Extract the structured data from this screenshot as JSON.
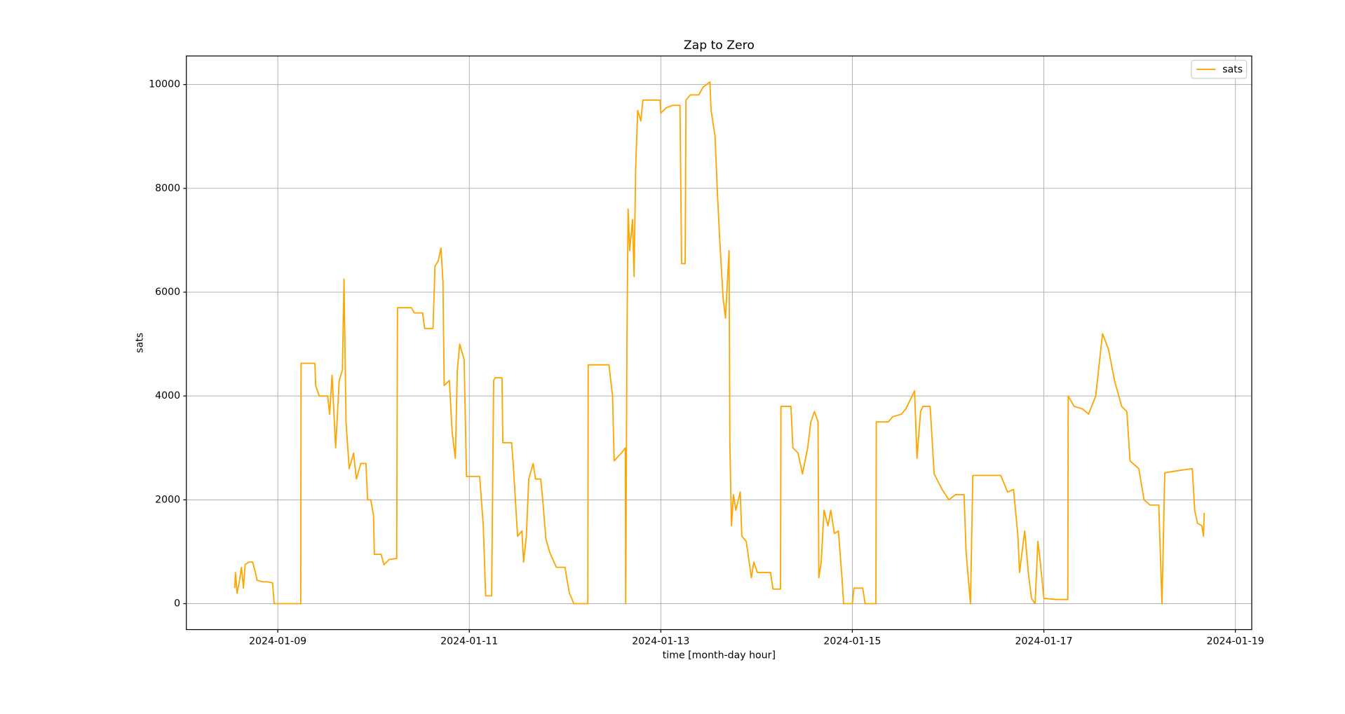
{
  "chart_data": {
    "type": "line",
    "title": "Zap to Zero",
    "xlabel": "time [month-day hour]",
    "ylabel": "sats",
    "grid": true,
    "legend": "upper right",
    "xlim": [
      "2024-01-08 01:05",
      "2024-01-19 04:06"
    ],
    "xticks": [
      "2024-01-09",
      "2024-01-11",
      "2024-01-13",
      "2024-01-15",
      "2024-01-17",
      "2024-01-19"
    ],
    "ylim": [
      -500,
      10550
    ],
    "yticks": [
      0,
      2000,
      4000,
      6000,
      8000,
      10000
    ],
    "x": [
      "2024-01-08 13:12",
      "2024-01-08 13:24",
      "2024-01-08 13:48",
      "2024-01-08 14:18",
      "2024-01-08 14:54",
      "2024-01-08 15:24",
      "2024-01-08 15:48",
      "2024-01-08 16:42",
      "2024-01-08 17:42",
      "2024-01-08 18:24",
      "2024-01-08 18:48",
      "2024-01-08 20:18",
      "2024-01-08 21:24",
      "2024-01-08 22:42",
      "2024-01-08 23:06",
      "2024-01-09 05:45",
      "2024-01-09 05:50",
      "2024-01-09 09:18",
      "2024-01-09 09:30",
      "2024-01-09 10:24",
      "2024-01-09 12:30",
      "2024-01-09 13:00",
      "2024-01-09 13:36",
      "2024-01-09 14:30",
      "2024-01-09 15:24",
      "2024-01-09 16:12",
      "2024-01-09 16:36",
      "2024-01-09 17:06",
      "2024-01-09 17:54",
      "2024-01-09 19:00",
      "2024-01-09 19:42",
      "2024-01-09 20:48",
      "2024-01-09 22:06",
      "2024-01-09 22:30",
      "2024-01-09 23:18",
      "2024-01-10 00:00",
      "2024-01-10 00:12",
      "2024-01-10 01:54",
      "2024-01-10 02:36",
      "2024-01-10 03:54",
      "2024-01-10 05:48",
      "2024-01-10 06:00",
      "2024-01-10 09:30",
      "2024-01-10 10:12",
      "2024-01-10 12:18",
      "2024-01-10 12:48",
      "2024-01-10 14:54",
      "2024-01-10 15:24",
      "2024-01-10 16:12",
      "2024-01-10 16:54",
      "2024-01-10 17:24",
      "2024-01-10 17:42",
      "2024-01-10 19:00",
      "2024-01-10 19:42",
      "2024-01-10 20:30",
      "2024-01-10 21:00",
      "2024-01-10 21:36",
      "2024-01-10 22:42",
      "2024-01-10 23:18",
      "2024-01-11 02:36",
      "2024-01-11 03:30",
      "2024-01-11 04:06",
      "2024-01-11 05:36",
      "2024-01-11 06:06",
      "2024-01-11 06:30",
      "2024-01-11 08:12",
      "2024-01-11 08:24",
      "2024-01-11 10:36",
      "2024-01-11 11:00",
      "2024-01-11 12:06",
      "2024-01-11 13:12",
      "2024-01-11 13:36",
      "2024-01-11 14:18",
      "2024-01-11 14:54",
      "2024-01-11 16:00",
      "2024-01-11 16:36",
      "2024-01-11 17:54",
      "2024-01-11 18:24",
      "2024-01-11 19:12",
      "2024-01-11 20:06",
      "2024-01-11 21:48",
      "2024-01-12 00:00",
      "2024-01-12 00:24",
      "2024-01-12 01:06",
      "2024-01-12 02:12",
      "2024-01-12 05:42",
      "2024-01-12 05:48",
      "2024-01-12 11:00",
      "2024-01-12 11:54",
      "2024-01-12 12:18",
      "2024-01-12 14:06",
      "2024-01-12 15:06",
      "2024-01-12 15:12",
      "2024-01-12 15:30",
      "2024-01-12 15:48",
      "2024-01-12 16:12",
      "2024-01-12 16:54",
      "2024-01-12 17:18",
      "2024-01-12 17:42",
      "2024-01-12 18:12",
      "2024-01-12 19:00",
      "2024-01-12 19:30",
      "2024-01-12 21:00",
      "2024-01-12 23:48",
      "2024-01-13 00:00",
      "2024-01-13 01:18",
      "2024-01-13 03:00",
      "2024-01-13 04:48",
      "2024-01-13 05:12",
      "2024-01-13 06:06",
      "2024-01-13 06:18",
      "2024-01-13 07:24",
      "2024-01-13 09:30",
      "2024-01-13 10:36",
      "2024-01-13 12:18",
      "2024-01-13 12:36",
      "2024-01-13 13:36",
      "2024-01-13 14:06",
      "2024-01-13 14:42",
      "2024-01-13 15:36",
      "2024-01-13 16:12",
      "2024-01-13 17:06",
      "2024-01-13 17:18",
      "2024-01-13 17:42",
      "2024-01-13 18:12",
      "2024-01-13 18:48",
      "2024-01-13 19:54",
      "2024-01-13 20:18",
      "2024-01-13 21:24",
      "2024-01-13 22:42",
      "2024-01-13 23:18",
      "2024-01-14 00:12",
      "2024-01-14 03:30",
      "2024-01-14 04:06",
      "2024-01-14 06:00",
      "2024-01-14 06:06",
      "2024-01-14 08:36",
      "2024-01-14 09:06",
      "2024-01-14 10:24",
      "2024-01-14 11:30",
      "2024-01-14 12:48",
      "2024-01-14 13:36",
      "2024-01-14 14:30",
      "2024-01-14 15:24",
      "2024-01-14 15:36",
      "2024-01-14 16:12",
      "2024-01-14 16:54",
      "2024-01-14 17:54",
      "2024-01-14 18:36",
      "2024-01-14 19:30",
      "2024-01-14 20:30",
      "2024-01-14 21:24",
      "2024-01-14 21:48",
      "2024-01-15 00:00",
      "2024-01-15 00:24",
      "2024-01-15 02:36",
      "2024-01-15 03:12",
      "2024-01-15 05:54",
      "2024-01-15 06:00",
      "2024-01-15 09:00",
      "2024-01-15 10:06",
      "2024-01-15 12:18",
      "2024-01-15 13:24",
      "2024-01-15 15:36",
      "2024-01-15 16:12",
      "2024-01-15 17:06",
      "2024-01-15 17:42",
      "2024-01-15 19:30",
      "2024-01-15 20:30",
      "2024-01-15 22:30",
      "2024-01-16 00:12",
      "2024-01-16 01:54",
      "2024-01-16 04:00",
      "2024-01-16 04:30",
      "2024-01-16 05:36",
      "2024-01-16 06:12",
      "2024-01-16 13:12",
      "2024-01-16 14:54",
      "2024-01-16 16:24",
      "2024-01-16 17:30",
      "2024-01-16 17:54",
      "2024-01-16 19:12",
      "2024-01-16 20:06",
      "2024-01-16 20:54",
      "2024-01-16 21:48",
      "2024-01-16 22:30",
      "2024-01-16 23:06",
      "2024-01-17 00:00",
      "2024-01-17 03:12",
      "2024-01-17 06:00",
      "2024-01-17 06:06",
      "2024-01-17 07:36",
      "2024-01-17 09:42",
      "2024-01-17 11:12",
      "2024-01-17 13:00",
      "2024-01-17 14:42",
      "2024-01-17 16:12",
      "2024-01-17 17:42",
      "2024-01-17 19:30",
      "2024-01-17 20:48",
      "2024-01-17 21:36",
      "2024-01-17 23:48",
      "2024-01-18 01:06",
      "2024-01-18 02:36",
      "2024-01-18 04:48",
      "2024-01-18 05:36",
      "2024-01-18 06:18",
      "2024-01-18 09:30",
      "2024-01-18 13:12",
      "2024-01-18 13:48",
      "2024-01-18 14:30",
      "2024-01-18 15:36",
      "2024-01-18 16:00",
      "2024-01-18 16:12"
    ],
    "series": [
      {
        "name": "sats",
        "color": "#ffa500",
        "values": [
          300,
          600,
          200,
          400,
          700,
          300,
          750,
          800,
          800,
          600,
          450,
          420,
          420,
          400,
          0,
          0,
          4630,
          4630,
          4200,
          4000,
          4000,
          3650,
          4400,
          3000,
          4300,
          4500,
          6250,
          3500,
          2600,
          2900,
          2400,
          2700,
          2700,
          2000,
          2000,
          1700,
          950,
          950,
          750,
          850,
          870,
          5700,
          5700,
          5600,
          5600,
          5300,
          5300,
          6500,
          6600,
          6850,
          6200,
          4200,
          4300,
          3300,
          2800,
          4500,
          5000,
          4700,
          2450,
          2450,
          1500,
          150,
          150,
          4300,
          4350,
          4350,
          3100,
          3100,
          2700,
          1300,
          1400,
          800,
          1300,
          2400,
          2700,
          2400,
          2400,
          2000,
          1250,
          1000,
          700,
          700,
          500,
          200,
          0,
          0,
          4600,
          4600,
          4000,
          2750,
          2900,
          3000,
          0,
          5000,
          7600,
          6800,
          7400,
          6300,
          8400,
          9500,
          9300,
          9700,
          9700,
          9700,
          9450,
          9550,
          9600,
          9600,
          6550,
          6550,
          9700,
          9800,
          9800,
          9950,
          10050,
          9500,
          9000,
          8050,
          7100,
          5900,
          5500,
          6800,
          3100,
          1500,
          2100,
          1800,
          2150,
          1300,
          1200,
          500,
          800,
          600,
          600,
          280,
          280,
          3800,
          3800,
          3000,
          2900,
          2500,
          3000,
          3500,
          3700,
          3500,
          500,
          800,
          1800,
          1500,
          1800,
          1350,
          1400,
          500,
          0,
          0,
          300,
          300,
          0,
          0,
          3500,
          3500,
          3600,
          3650,
          3750,
          4100,
          2800,
          3700,
          3800,
          3800,
          2500,
          2200,
          2000,
          2100,
          2100,
          1000,
          0,
          2470,
          2470,
          2150,
          2200,
          1300,
          600,
          1400,
          600,
          100,
          0,
          1200,
          800,
          100,
          80,
          80,
          4000,
          3800,
          3750,
          3650,
          4000,
          5200,
          4900,
          4300,
          3800,
          3700,
          2750,
          2600,
          2000,
          1900,
          1900,
          0,
          2520,
          2560,
          2600,
          1800,
          1550,
          1500,
          1300,
          1750
        ]
      }
    ]
  }
}
